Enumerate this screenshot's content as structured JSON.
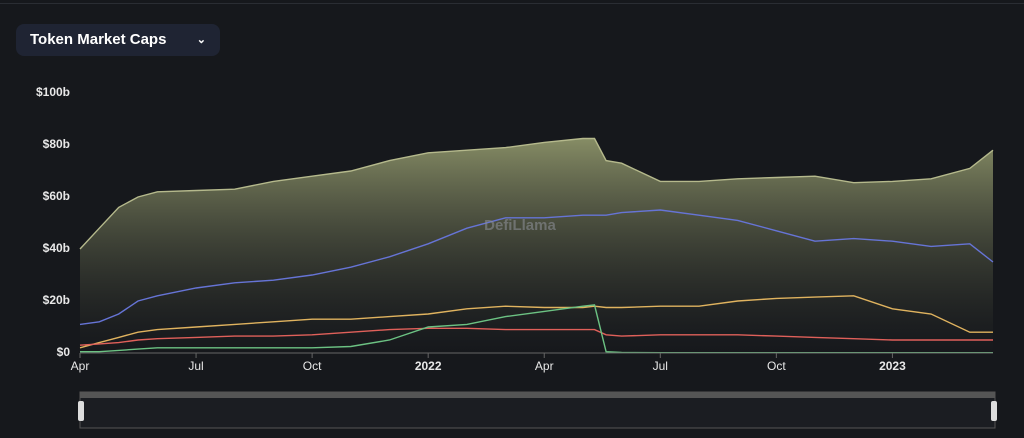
{
  "header": {
    "dropdown": "Token Market Caps"
  },
  "chart_data": {
    "type": "line",
    "watermark": "DefiLlama",
    "x": [
      0,
      0.5,
      1,
      1.5,
      2,
      3,
      4,
      5,
      6,
      7,
      8,
      9,
      10,
      11,
      12,
      13,
      13.3,
      13.6,
      14,
      15,
      16,
      17,
      18,
      19,
      20,
      21,
      22,
      23,
      23.6
    ],
    "series": [
      {
        "color": "#b5b98c",
        "area": true,
        "values": [
          40,
          48,
          56,
          60,
          62,
          62.5,
          63,
          66,
          68,
          70,
          74,
          77,
          78,
          79,
          81,
          82.5,
          82.5,
          74,
          73,
          66,
          66,
          67,
          67.5,
          68,
          65.5,
          66,
          67,
          71,
          78
        ]
      },
      {
        "color": "#6674d6",
        "values": [
          11,
          12,
          15,
          20,
          22,
          25,
          27,
          28,
          30,
          33,
          37,
          42,
          48,
          52,
          52,
          53,
          53,
          53,
          54,
          55,
          53,
          51,
          47,
          43,
          44,
          43,
          41,
          42,
          35
        ]
      },
      {
        "color": "#e0b35f",
        "values": [
          2,
          4,
          6,
          8,
          9,
          10,
          11,
          12,
          13,
          13,
          14,
          15,
          17,
          18,
          17.5,
          17.5,
          18,
          17.5,
          17.5,
          18,
          18,
          20,
          21,
          21.5,
          22,
          17,
          15,
          8,
          8
        ]
      },
      {
        "color": "#e0605a",
        "values": [
          3,
          3.5,
          4,
          5,
          5.5,
          6,
          6.5,
          6.5,
          7,
          8,
          9,
          9.5,
          9.5,
          9,
          9,
          9,
          9,
          7,
          6.5,
          7,
          7,
          7,
          6.5,
          6,
          5.5,
          5,
          5,
          5,
          5
        ]
      },
      {
        "color": "#6cc283",
        "values": [
          0.5,
          0.5,
          1,
          1.5,
          2,
          2,
          2,
          2,
          2,
          2.5,
          5,
          10,
          11,
          14,
          16,
          18,
          18.5,
          0.5,
          0.2,
          0.1,
          0.1,
          0.1,
          0.1,
          0.1,
          0.1,
          0.1,
          0.1,
          0.1,
          0.1
        ]
      }
    ],
    "xlim": [
      0,
      23.6
    ],
    "xticks": [
      {
        "value": 0,
        "label": "Apr"
      },
      {
        "value": 3,
        "label": "Jul"
      },
      {
        "value": 6,
        "label": "Oct"
      },
      {
        "value": 9,
        "label": "2022"
      },
      {
        "value": 12,
        "label": "Apr"
      },
      {
        "value": 15,
        "label": "Jul"
      },
      {
        "value": 18,
        "label": "Oct"
      },
      {
        "value": 21,
        "label": "2023"
      }
    ],
    "ylim": [
      0,
      100
    ],
    "yticks": [
      {
        "value": 0,
        "label": "$0"
      },
      {
        "value": 20,
        "label": "$20b"
      },
      {
        "value": 40,
        "label": "$40b"
      },
      {
        "value": 60,
        "label": "$60b"
      },
      {
        "value": 80,
        "label": "$80b"
      },
      {
        "value": 100,
        "label": "$100b"
      }
    ]
  }
}
